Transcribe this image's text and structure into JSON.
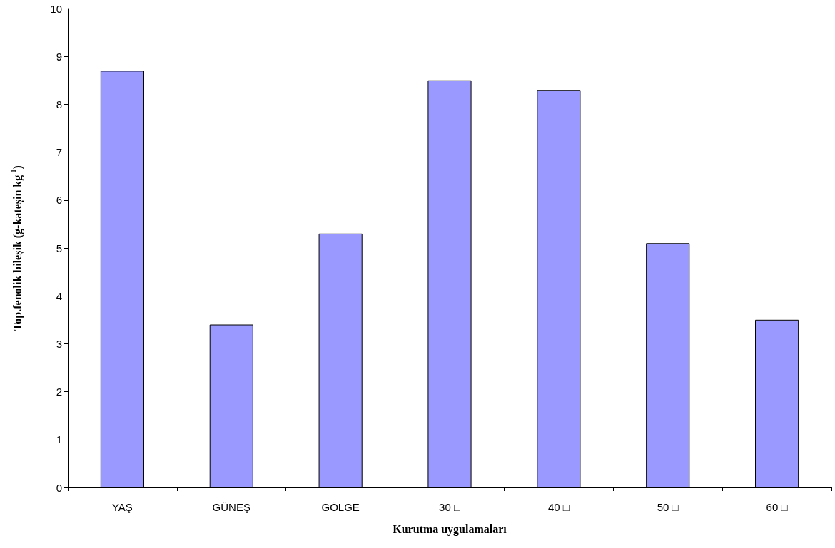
{
  "chart_data": {
    "type": "bar",
    "xlabel": "Kurutma uygulamaları",
    "ylabel": "Top.fenolik bileşik (g-kateşin kg$^{-1}$)",
    "categories": [
      "YAŞ",
      "GÜNEŞ",
      "GÖLGE",
      "30 □",
      "40 □",
      "50 □",
      "60 □"
    ],
    "values": [
      8.7,
      3.4,
      5.3,
      8.5,
      8.3,
      5.1,
      3.5
    ],
    "color": "#9999ff",
    "ylim": [
      0,
      10
    ],
    "yticks": [
      0,
      1,
      2,
      3,
      4,
      5,
      6,
      7,
      8,
      9,
      10
    ],
    "grid": false
  }
}
